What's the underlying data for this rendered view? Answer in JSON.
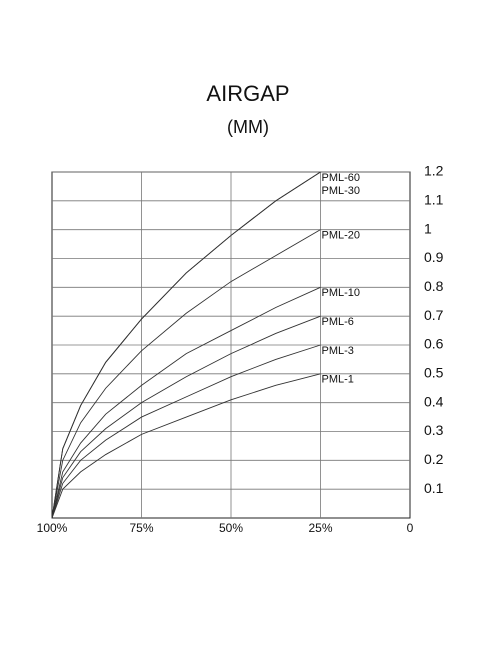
{
  "chart_data": {
    "type": "line",
    "title": "AIRGAP",
    "subtitle": "(MM)",
    "x": [
      100,
      97,
      92,
      85,
      75,
      62.5,
      50,
      37.5,
      25
    ],
    "xlim": [
      100,
      0
    ],
    "xticks": [
      {
        "value": 100,
        "label": "100%"
      },
      {
        "value": 75,
        "label": "75%"
      },
      {
        "value": 50,
        "label": "50%"
      },
      {
        "value": 25,
        "label": "25%"
      },
      0
    ],
    "ylim": [
      0,
      1.2
    ],
    "yticks": [
      0.1,
      0.2,
      0.3,
      0.4,
      0.5,
      0.6,
      0.7,
      0.8,
      0.9,
      1.0,
      1.1,
      1.2
    ],
    "grid": true,
    "color": "#333333",
    "series": [
      {
        "name": "PML-60",
        "values": [
          0,
          0.24,
          0.39,
          0.54,
          0.69,
          0.85,
          0.98,
          1.1,
          1.2
        ]
      },
      {
        "name": "PML-30",
        "values": [
          0,
          0.24,
          0.39,
          0.54,
          0.69,
          0.85,
          0.98,
          1.1,
          1.2
        ]
      },
      {
        "name": "PML-20",
        "values": [
          0,
          0.2,
          0.33,
          0.45,
          0.58,
          0.71,
          0.82,
          0.91,
          1.0
        ]
      },
      {
        "name": "PML-10",
        "values": [
          0,
          0.16,
          0.26,
          0.36,
          0.46,
          0.57,
          0.65,
          0.73,
          0.8
        ]
      },
      {
        "name": "PML-6",
        "values": [
          0,
          0.14,
          0.23,
          0.31,
          0.4,
          0.49,
          0.57,
          0.64,
          0.7
        ]
      },
      {
        "name": "PML-3",
        "values": [
          0,
          0.12,
          0.2,
          0.27,
          0.35,
          0.42,
          0.49,
          0.55,
          0.6
        ]
      },
      {
        "name": "PML-1",
        "values": [
          0,
          0.1,
          0.16,
          0.22,
          0.29,
          0.35,
          0.41,
          0.46,
          0.5
        ]
      }
    ]
  }
}
